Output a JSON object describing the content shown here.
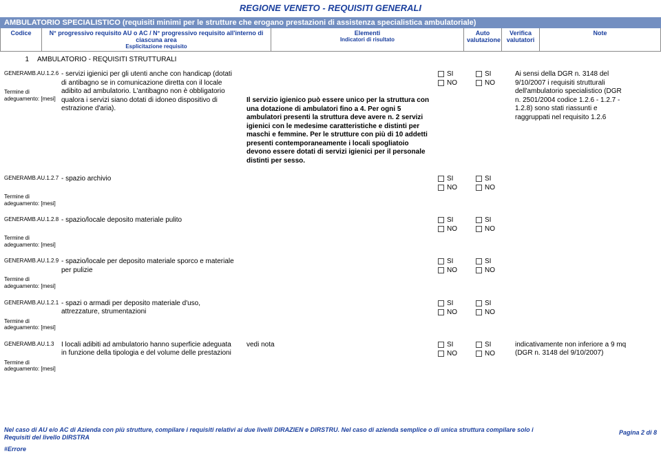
{
  "title": "REGIONE  VENETO - REQUISITI GENERALI",
  "header_bar": "AMBULATORIO SPECIALISTICO (requisiti minimi per le strutture che erogano prestazioni di assistenza specialistica ambulatoriale)",
  "cols": {
    "codice": "Codice",
    "req": "N° progressivo requisito AU o AC / N° progressivo requisito all'interno di ciascuna area",
    "req_sub": "Esplicitazione requisito",
    "elem": "Elementi",
    "elem_sub": "Indicatori di risultato",
    "auto": "Auto valutazione",
    "verif": "Verifica valutatori",
    "note": "Note"
  },
  "section": {
    "num": "1",
    "text": "AMBULATORIO - REQUISITI STRUTTURALI"
  },
  "termine": "Termine di adeguamento: [mesi]",
  "check": {
    "si": "SI",
    "no": "NO"
  },
  "rows": [
    {
      "code": "GENERAMB.AU.1.2.6",
      "desc": "- servizi igienici per gli utenti anche con handicap (dotati di antibagno se in comunicazione diretta con il locale adibito ad ambulatorio. L'antibagno non è obbligatorio qualora i servizi siano dotati di idoneo dispositivo di estrazione d'aria).",
      "indic": "Il servizio igienico può essere unico per la struttura con una dotazione di ambulatori fino a 4. Per ogni 5 ambulatori presenti la struttura deve avere n. 2 servizi igienici con le medesime caratteristiche e distinti per maschi e femmine. Per le strutture con più di 10 addetti presenti contemporaneamente i locali spogliatoio devono essere dotati di servizi igienici per il personale distinti per sesso.",
      "note": "Ai sensi della DGR n. 3148 del 9/10/2007 i requisiti strutturali dell'ambulatorio specialistico (DGR n. 2501/2004 codice 1.2.6 - 1.2.7 - 1.2.8) sono stati riassunti e raggruppati nel requisito 1.2.6"
    },
    {
      "code": "GENERAMB.AU.1.2.7",
      "desc": "- spazio archivio",
      "indic": "",
      "note": ""
    },
    {
      "code": "GENERAMB.AU.1.2.8",
      "desc": "- spazio/locale deposito materiale pulito",
      "indic": "",
      "note": ""
    },
    {
      "code": "GENERAMB.AU.1.2.9",
      "desc": "- spazio/locale per deposito materiale sporco e materiale per pulizie",
      "indic": "",
      "note": ""
    },
    {
      "code": "GENERAMB.AU.1.2.1",
      "desc": "- spazi o armadi per deposito materiale d'uso, attrezzature, strumentazioni",
      "indic": "",
      "note": ""
    },
    {
      "code": "GENERAMB.AU.1.3",
      "desc": "I locali adibiti ad ambulatorio hanno superficie adeguata in funzione della tipologia e del volume delle prestazioni",
      "indic": "vedi nota",
      "note": "indicativamente non inferiore a 9 mq (DGR n. 3148 del 9/10/2007)"
    }
  ],
  "footer": {
    "text": "Nel caso di AU e/o AC di Azienda con più strutture, compilare i requisiti relativi ai due livelli DIRAZIEN e DIRSTRU. Nel caso di azienda semplice o di unica struttura compilare solo i Requisiti del livello DIRSTRA",
    "page": "Pagina 2 di 8",
    "err": "#Errore"
  },
  "style": {
    "title_color": "#1a3f9e",
    "bar_bg": "#738fc1",
    "indic_bold": true
  }
}
